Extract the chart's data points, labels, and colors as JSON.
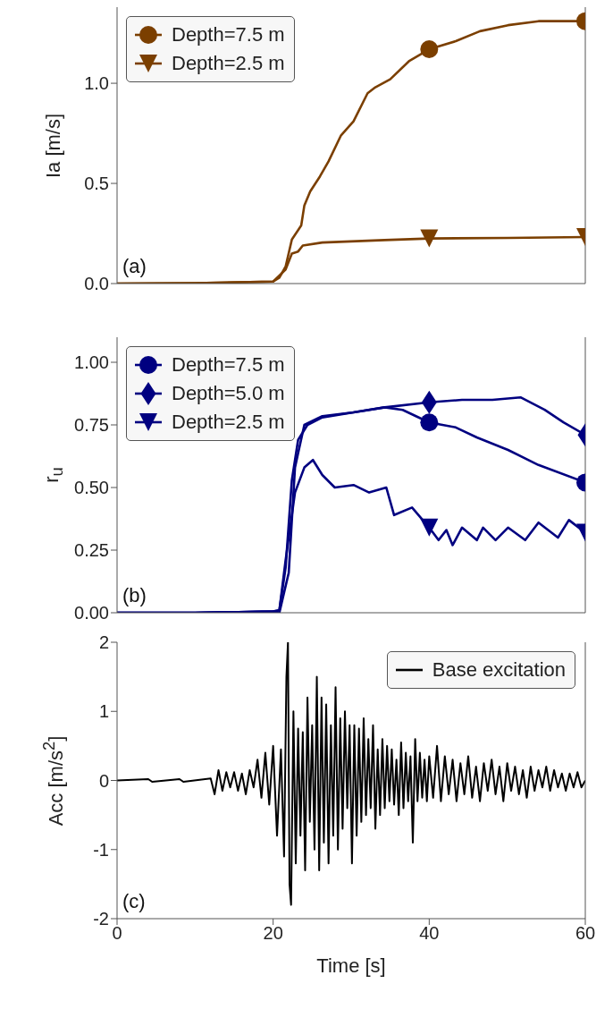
{
  "chart_data": [
    {
      "type": "line",
      "ylabel": "Ia [m/s]",
      "xlim": [
        0,
        60
      ],
      "xticks": [
        0,
        20,
        40,
        60
      ],
      "ylim": [
        0,
        1.38
      ],
      "yticks": [
        {
          "value": 0,
          "label": "0.0"
        },
        {
          "value": 0.5,
          "label": "0.5"
        },
        {
          "value": 1,
          "label": "1.0"
        }
      ],
      "tick_labels": "y",
      "legend": "top left",
      "annotations": [
        "(a)"
      ],
      "series": [
        {
          "name": "Depth=7.5 m",
          "color": "#7b3f00",
          "x": [
            0,
            10,
            20,
            20.8,
            21.6,
            22.4,
            23.6,
            24,
            24.75,
            26,
            27.1,
            28.7,
            30.3,
            32.1,
            33.1,
            35,
            37.4,
            40,
            43.4,
            46.5,
            50.1,
            54,
            60
          ],
          "values": [
            0,
            0.002,
            0.01,
            0.03,
            0.085,
            0.22,
            0.29,
            0.39,
            0.46,
            0.535,
            0.61,
            0.74,
            0.81,
            0.95,
            0.98,
            1.02,
            1.11,
            1.17,
            1.21,
            1.26,
            1.29,
            1.31,
            1.31
          ]
        },
        {
          "name": "Depth=2.5 m",
          "color": "#7b3f00",
          "x": [
            0,
            10,
            20,
            21.6,
            22.4,
            23.2,
            23.8,
            26.3,
            34.3,
            40,
            50,
            60
          ],
          "values": [
            0,
            0.002,
            0.01,
            0.07,
            0.15,
            0.16,
            0.19,
            0.205,
            0.217,
            0.225,
            0.228,
            0.232
          ]
        },
        {
          "type": "scatter",
          "color": "#7b3f00",
          "marker": "circle",
          "x": [
            40,
            60
          ],
          "values": [
            1.17,
            1.31
          ]
        },
        {
          "type": "scatter",
          "color": "#7b3f00",
          "marker": "triangle",
          "x": [
            40,
            60
          ],
          "values": [
            0.225,
            0.232
          ]
        }
      ]
    },
    {
      "type": "line",
      "ylabel": "r$_{u}$",
      "xlim": [
        0,
        60
      ],
      "xticks": [
        0,
        20,
        40,
        60
      ],
      "ylim": [
        0,
        1.1
      ],
      "yticks": [
        {
          "value": 0,
          "label": "0.00"
        },
        {
          "value": 0.25,
          "label": "0.25"
        },
        {
          "value": 0.5,
          "label": "0.50"
        },
        {
          "value": 0.75,
          "label": "0.75"
        },
        {
          "value": 1,
          "label": "1.00"
        }
      ],
      "tick_labels": "y",
      "legend": "top left",
      "annotations": [
        "(b)"
      ],
      "series": [
        {
          "name": "Depth=7.5 m",
          "color": "#000080",
          "x": [
            0,
            10,
            20,
            20.8,
            21.6,
            22.4,
            23.2,
            24.4,
            26.3,
            30.3,
            34.3,
            36.6,
            40,
            43.4,
            46.1,
            50.1,
            54,
            60
          ],
          "values": [
            0,
            0,
            0.005,
            0.01,
            0.18,
            0.53,
            0.69,
            0.75,
            0.78,
            0.8,
            0.82,
            0.81,
            0.76,
            0.74,
            0.7,
            0.65,
            0.59,
            0.52
          ]
        },
        {
          "name": "Depth=5.0 m",
          "color": "#000080",
          "x": [
            0,
            10,
            20,
            20.8,
            22,
            22.8,
            24,
            26.3,
            30.3,
            34.3,
            40,
            44.2,
            48.1,
            51.7,
            54.8,
            57.2,
            60
          ],
          "values": [
            0,
            0,
            0.005,
            0,
            0.16,
            0.58,
            0.75,
            0.785,
            0.8,
            0.82,
            0.84,
            0.85,
            0.85,
            0.86,
            0.81,
            0.76,
            0.71
          ]
        },
        {
          "name": "Depth=2.5 m",
          "color": "#000080",
          "x": [
            0,
            10,
            20,
            20.8,
            21.6,
            22.8,
            24,
            25.1,
            26.3,
            27.9,
            30.3,
            32.3,
            34.5,
            35.5,
            37.8,
            40,
            41.2,
            42.2,
            43,
            44.2,
            46.1,
            46.9,
            48.5,
            50.1,
            52.3,
            54,
            56.5,
            57.9,
            60
          ],
          "values": [
            0,
            0,
            0.005,
            0.01,
            0.21,
            0.48,
            0.58,
            0.61,
            0.55,
            0.5,
            0.51,
            0.48,
            0.5,
            0.39,
            0.42,
            0.34,
            0.29,
            0.33,
            0.27,
            0.34,
            0.29,
            0.34,
            0.29,
            0.34,
            0.29,
            0.36,
            0.3,
            0.37,
            0.32
          ]
        },
        {
          "type": "scatter",
          "color": "#000080",
          "marker": "circle",
          "x": [
            40,
            60
          ],
          "values": [
            0.76,
            0.52
          ]
        },
        {
          "type": "scatter",
          "color": "#000080",
          "marker": "diamond",
          "x": [
            40,
            60
          ],
          "values": [
            0.84,
            0.71
          ]
        },
        {
          "type": "scatter",
          "color": "#000080",
          "marker": "triangle",
          "x": [
            40,
            60
          ],
          "values": [
            0.34,
            0.32
          ]
        }
      ]
    },
    {
      "type": "line",
      "ylabel": "Acc [m/s$^{2}$]",
      "xlabel": "Time [s]",
      "xlim": [
        0,
        60
      ],
      "xticks": [
        0,
        20,
        40,
        60
      ],
      "ylim": [
        -2,
        2
      ],
      "yticks": [
        -2,
        -1,
        0,
        1,
        2
      ],
      "legend": "top right",
      "annotations": [
        "(c)"
      ],
      "series": [
        {
          "name": "Base excitation",
          "color": "#000000",
          "x": [
            0,
            4,
            4.5,
            8,
            8.5,
            12,
            12.5,
            13,
            13.5,
            14,
            14.5,
            15,
            15.5,
            16,
            16.5,
            17,
            17.5,
            18,
            18.5,
            19,
            19.5,
            20,
            20.5,
            21,
            21.4,
            21.7,
            21.9,
            22.1,
            22.3,
            22.6,
            22.9,
            23.2,
            23.5,
            23.8,
            24.1,
            24.4,
            24.7,
            25,
            25.3,
            25.6,
            25.9,
            26.2,
            26.5,
            26.8,
            27.1,
            27.4,
            27.7,
            28,
            28.3,
            28.6,
            28.9,
            29.2,
            29.5,
            29.8,
            30.1,
            30.4,
            30.7,
            31,
            31.3,
            31.6,
            31.9,
            32.2,
            32.5,
            32.8,
            33.1,
            33.4,
            33.7,
            34,
            34.3,
            34.6,
            34.9,
            35.2,
            35.5,
            35.8,
            36.1,
            36.4,
            36.7,
            37,
            37.3,
            37.6,
            37.9,
            38.2,
            38.5,
            38.8,
            39.1,
            39.4,
            39.7,
            40,
            40.5,
            41,
            41.5,
            42,
            42.5,
            43,
            43.5,
            44,
            44.5,
            45,
            45.5,
            46,
            46.5,
            47,
            47.5,
            48,
            48.5,
            49,
            49.5,
            50,
            50.5,
            51,
            51.5,
            52,
            52.5,
            53,
            53.5,
            54,
            54.5,
            55,
            55.5,
            56,
            56.5,
            57,
            57.5,
            58,
            58.5,
            59,
            59.5,
            60
          ],
          "values": [
            0,
            0.02,
            -0.02,
            0.02,
            -0.02,
            0.03,
            -0.2,
            0.15,
            -0.15,
            0.12,
            -0.1,
            0.12,
            -0.15,
            0.1,
            -0.2,
            0.15,
            -0.1,
            0.3,
            -0.25,
            0.4,
            -0.35,
            0.5,
            -0.8,
            0.45,
            -1.1,
            1.5,
            2,
            -1.5,
            -1.8,
            1,
            -1.2,
            0.75,
            -0.8,
            0.7,
            -1.3,
            1.2,
            -0.6,
            0.8,
            -1,
            1.5,
            -1.3,
            1.2,
            -0.9,
            1.1,
            -1.2,
            0.8,
            -0.8,
            1.35,
            -1,
            0.9,
            -0.7,
            1,
            -0.4,
            0.8,
            -1.2,
            0.8,
            -0.8,
            0.75,
            -0.6,
            0.9,
            -0.5,
            0.6,
            -0.4,
            0.8,
            -0.7,
            0.45,
            -0.5,
            0.6,
            -0.4,
            0.5,
            -0.3,
            0.45,
            -0.35,
            0.3,
            -0.5,
            0.55,
            -0.4,
            0.4,
            -0.3,
            0.35,
            -0.9,
            0.6,
            -0.3,
            0.4,
            -0.25,
            0.3,
            -0.3,
            0.35,
            -0.25,
            0.5,
            -0.3,
            0.35,
            -0.2,
            0.3,
            -0.3,
            0.25,
            -0.2,
            0.35,
            -0.25,
            0.2,
            -0.3,
            0.25,
            -0.15,
            0.3,
            -0.2,
            0.2,
            -0.3,
            0.25,
            -0.15,
            0.2,
            -0.2,
            0.15,
            -0.25,
            0.2,
            -0.15,
            0.15,
            -0.1,
            0.2,
            -0.15,
            0.15,
            -0.1,
            0.1,
            -0.15,
            0.1,
            -0.1,
            0.12,
            -0.1,
            0
          ]
        }
      ]
    }
  ]
}
